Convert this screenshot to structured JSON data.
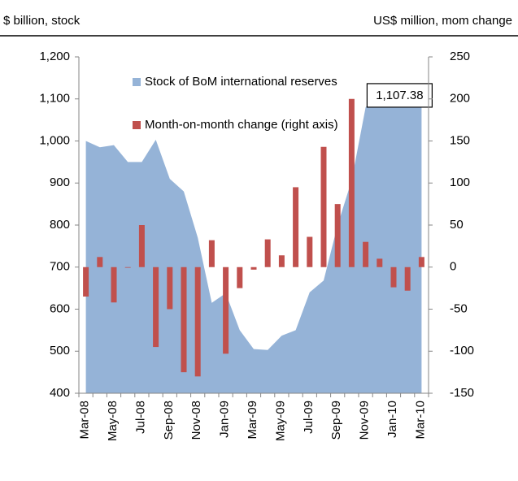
{
  "chart_data": {
    "type": "area_bar",
    "left_header": "$ billion, stock",
    "right_header": "US$ million, mom change",
    "categories": [
      "Mar-08",
      null,
      "May-08",
      null,
      "Jul-08",
      null,
      "Sep-08",
      null,
      "Nov-08",
      null,
      "Jan-09",
      null,
      "Mar-09",
      null,
      "May-09",
      null,
      "Jul-09",
      null,
      "Sep-09",
      null,
      "Nov-09",
      null,
      "Jan-10",
      null,
      "Mar-10"
    ],
    "series": [
      {
        "name": "Stock of BoM international reserves",
        "type": "area",
        "color": "#95b3d7",
        "axis": "y",
        "values": [
          1000,
          985,
          990,
          950,
          950,
          1003,
          910,
          880,
          770,
          615,
          638,
          550,
          505,
          503,
          537,
          550,
          640,
          668,
          800,
          906,
          1080,
          1120,
          1120,
          1095,
          1107.38
        ],
        "value_labels": [
          null,
          null,
          null,
          null,
          null,
          null,
          null,
          null,
          null,
          null,
          null,
          null,
          null,
          null,
          null,
          null,
          null,
          null,
          null,
          null,
          null,
          null,
          null,
          null,
          "1,107.38"
        ]
      },
      {
        "name": "Month-on-month change (right axis)",
        "type": "bar",
        "color": "#c0504d",
        "axis": "y2",
        "values": [
          -35,
          12,
          -42,
          0,
          50,
          -95,
          -50,
          -125,
          -130,
          32,
          -103,
          -25,
          -3,
          33,
          14,
          95,
          36,
          143,
          75,
          200,
          30,
          10,
          -24,
          -28,
          12
        ]
      }
    ],
    "ylim": [
      400,
      1200
    ],
    "yticks": [
      400,
      500,
      600,
      700,
      800,
      900,
      {
        "value": 1000,
        "label": "1,000"
      },
      {
        "value": 1100,
        "label": "1,100"
      },
      {
        "value": 1200,
        "label": "1,200"
      }
    ],
    "y2lim": [
      -150,
      250
    ],
    "y2ticks": [
      -150,
      -100,
      -50,
      0,
      50,
      100,
      150,
      200,
      250
    ]
  }
}
